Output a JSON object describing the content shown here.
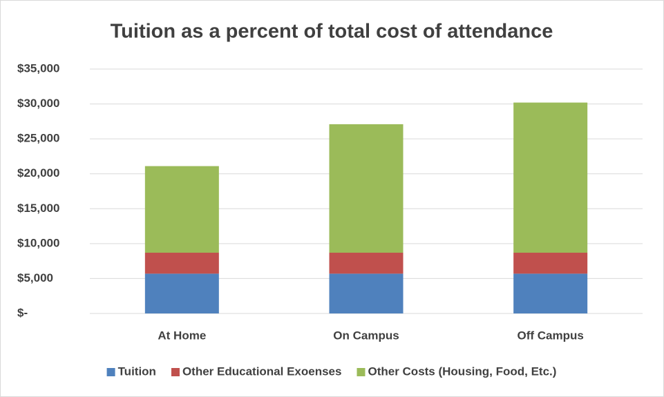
{
  "chart_data": {
    "type": "stacked_bar",
    "title": "Tuition as a percent of total cost of attendance",
    "categories": [
      "At Home",
      "On Campus",
      "Off Campus"
    ],
    "series": [
      {
        "name": "Tuition",
        "color": "#4f81bd",
        "values": [
          5700,
          5700,
          5700
        ]
      },
      {
        "name": "Other Educational Exoenses",
        "color": "#c0504d",
        "values": [
          3000,
          3000,
          3000
        ]
      },
      {
        "name": "Other Costs (Housing, Food, Etc.)",
        "color": "#9bbb59",
        "values": [
          12400,
          18400,
          21500
        ]
      }
    ],
    "ylim": [
      0,
      35000
    ],
    "yticks": [
      {
        "value": 0,
        "label": "$-"
      },
      {
        "value": 5000,
        "label": "$5,000"
      },
      {
        "value": 10000,
        "label": "$10,000"
      },
      {
        "value": 15000,
        "label": "$15,000"
      },
      {
        "value": 20000,
        "label": "$20,000"
      },
      {
        "value": 25000,
        "label": "$25,000"
      },
      {
        "value": 30000,
        "label": "$30,000"
      },
      {
        "value": 35000,
        "label": "$35,000"
      }
    ],
    "grid": true,
    "legend": "bottom"
  }
}
